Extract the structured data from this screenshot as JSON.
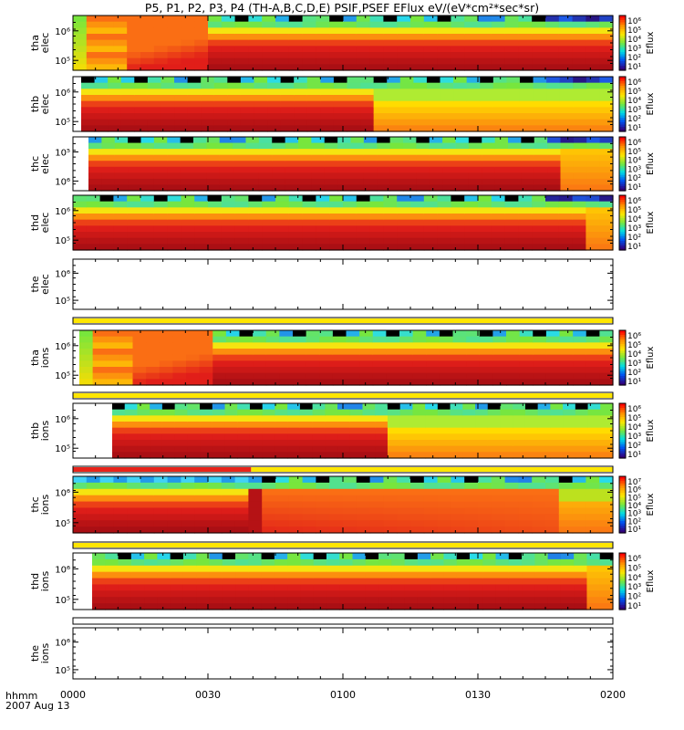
{
  "title": "P5, P1, P2, P3, P4 (TH-A,B,C,D,E) PSIF,PSEF EFlux eV/(eV*cm²*sec*sr)",
  "footer": {
    "time_label": "hhmm",
    "date_label": "2007 Aug 13"
  },
  "x_ticks": [
    "0000",
    "0030",
    "0100",
    "0130",
    "0200"
  ],
  "colorbar": {
    "label": "Eflux",
    "ticks": [
      "10⁶",
      "10⁵",
      "10⁴",
      "10³",
      "10²",
      "10¹"
    ]
  },
  "colorbar_thc_ions": {
    "ticks": [
      "10⁷",
      "10⁶",
      "10⁵",
      "10⁴",
      "10³",
      "10²",
      "10¹"
    ]
  },
  "colors": {
    "red": "#e8231a",
    "darkred": "#b4141a",
    "yellow": "#ffe600",
    "bar_red": "#e8231a",
    "bar_yellow": "#ffe600"
  },
  "chart_data": [
    {
      "type": "heatmap",
      "probe": "tha",
      "species": "elec",
      "ylabel_top": "tha",
      "ylabel_bottom": "elec",
      "y_ticks": [
        "10⁶",
        "10⁵"
      ],
      "x_range": [
        "0000",
        "0200"
      ],
      "has_colorbar": true
    },
    {
      "type": "heatmap",
      "probe": "thb",
      "species": "elec",
      "ylabel_top": "thb",
      "ylabel_bottom": "elec",
      "y_ticks": [
        "10⁶",
        "10⁵"
      ],
      "x_range": [
        "0000",
        "0200"
      ],
      "has_colorbar": true
    },
    {
      "type": "heatmap",
      "probe": "thc",
      "species": "elec",
      "ylabel_top": "thc",
      "ylabel_bottom": "elec",
      "y_ticks": [
        "10⁵",
        "10⁶"
      ],
      "x_range": [
        "0000",
        "0200"
      ],
      "has_colorbar": true
    },
    {
      "type": "heatmap",
      "probe": "thd",
      "species": "elec",
      "ylabel_top": "thd",
      "ylabel_bottom": "elec",
      "y_ticks": [
        "10⁶",
        "10⁵"
      ],
      "x_range": [
        "0000",
        "0200"
      ],
      "has_colorbar": true
    },
    {
      "type": "heatmap",
      "probe": "the",
      "species": "elec",
      "ylabel_top": "the",
      "ylabel_bottom": "elec",
      "y_ticks": [
        "10⁶",
        "10⁵"
      ],
      "x_range": [
        "0000",
        "0200"
      ],
      "has_colorbar": false
    },
    {
      "type": "heatmap",
      "probe": "tha",
      "species": "ions",
      "ylabel_top": "tha",
      "ylabel_bottom": "ions",
      "y_ticks": [
        "10⁶",
        "10⁵"
      ],
      "x_range": [
        "0000",
        "0200"
      ],
      "has_colorbar": true
    },
    {
      "type": "heatmap",
      "probe": "thb",
      "species": "ions",
      "ylabel_top": "thb",
      "ylabel_bottom": "ions",
      "y_ticks": [
        "10⁶",
        "10⁵"
      ],
      "x_range": [
        "0000",
        "0200"
      ],
      "has_colorbar": true
    },
    {
      "type": "heatmap",
      "probe": "thc",
      "species": "ions",
      "ylabel_top": "thc",
      "ylabel_bottom": "ions",
      "y_ticks": [
        "10⁶",
        "10⁵"
      ],
      "x_range": [
        "0000",
        "0200"
      ],
      "has_colorbar": true
    },
    {
      "type": "heatmap",
      "probe": "thd",
      "species": "ions",
      "ylabel_top": "thd",
      "ylabel_bottom": "ions",
      "y_ticks": [
        "10⁶",
        "10⁵"
      ],
      "x_range": [
        "0000",
        "0200"
      ],
      "has_colorbar": true
    },
    {
      "type": "heatmap",
      "probe": "the",
      "species": "ions",
      "ylabel_top": "the",
      "ylabel_bottom": "ions",
      "y_ticks": [
        "10⁶",
        "10⁵"
      ],
      "x_range": [
        "0000",
        "0200"
      ],
      "has_colorbar": false
    }
  ]
}
